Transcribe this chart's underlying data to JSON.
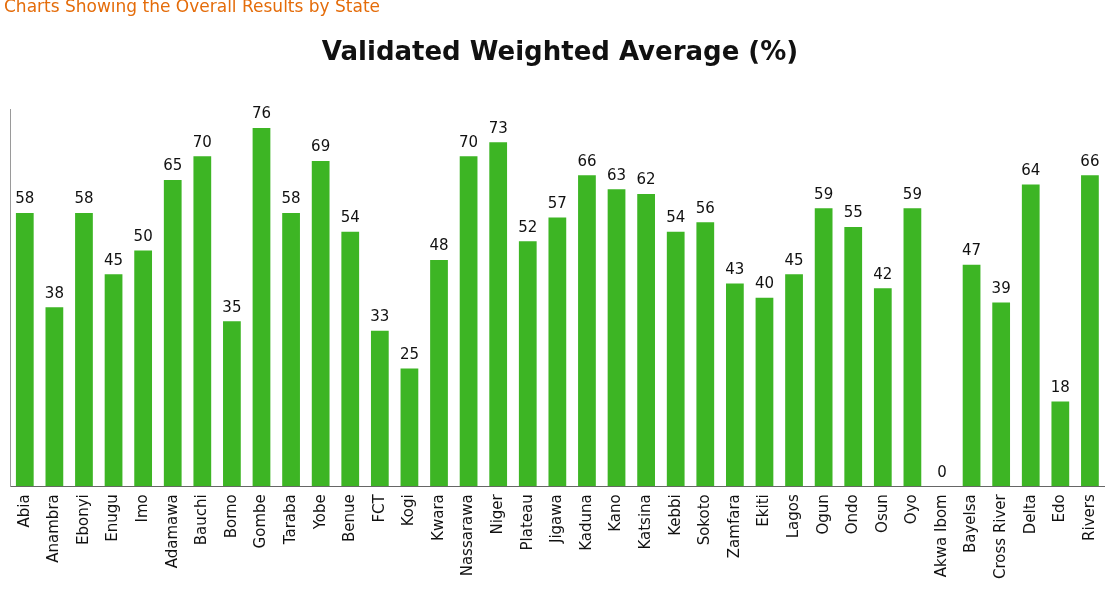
{
  "chart_data": {
    "type": "bar",
    "title": "Validated Weighted Average (%)",
    "subtitle": "Charts Showing the Overall Results by State",
    "categories": [
      "Abia",
      "Anambra",
      "Ebonyi",
      "Enugu",
      "Imo",
      "Adamawa",
      "Bauchi",
      "Borno",
      "Gombe",
      "Taraba",
      "Yobe",
      "Benue",
      "FCT",
      "Kogi",
      "Kwara",
      "Nassarawa",
      "Niger",
      "Plateau",
      "Jigawa",
      "Kaduna",
      "Kano",
      "Katsina",
      "Kebbi",
      "Sokoto",
      "Zamfara",
      "Ekiti",
      "Lagos",
      "Ogun",
      "Ondo",
      "Osun",
      "Oyo",
      "Akwa Ibom",
      "Bayelsa",
      "Cross River",
      "Delta",
      "Edo",
      "Rivers"
    ],
    "values": [
      58,
      38,
      58,
      45,
      50,
      65,
      70,
      35,
      76,
      58,
      69,
      54,
      33,
      25,
      48,
      70,
      73,
      52,
      57,
      66,
      63,
      62,
      54,
      56,
      43,
      40,
      45,
      59,
      55,
      42,
      59,
      0,
      47,
      39,
      64,
      18,
      66
    ],
    "color": "#3db524",
    "data_labels": true,
    "grid": false,
    "legend": false,
    "tick_labels": "x"
  }
}
